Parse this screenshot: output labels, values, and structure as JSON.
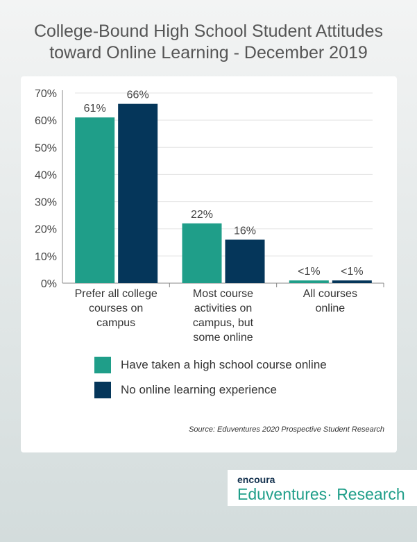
{
  "title_line1": "College-Bound High School Student Attitudes",
  "title_line2": "toward Online Learning - December 2019",
  "chart_data": {
    "type": "bar",
    "categories": [
      [
        "Prefer all college",
        "courses on",
        "campus"
      ],
      [
        "Most course",
        "activities on",
        "campus, but",
        "some online"
      ],
      [
        "All courses",
        "online"
      ]
    ],
    "series": [
      {
        "name": "Have taken a high school course online",
        "values": [
          61,
          22,
          1
        ],
        "labels": [
          "61%",
          "22%",
          "<1%"
        ],
        "color": "#1f9e89"
      },
      {
        "name": "No online learning experience",
        "values": [
          66,
          16,
          1
        ],
        "labels": [
          "66%",
          "16%",
          "<1%"
        ],
        "color": "#05365a"
      }
    ],
    "ylim": [
      0,
      70
    ],
    "yticks": [
      "0%",
      "10%",
      "20%",
      "30%",
      "40%",
      "50%",
      "60%",
      "70%"
    ],
    "grid": true,
    "legend_placement": "bottom"
  },
  "source": "Source: Eduventures 2020 Prospective Student Research",
  "logo": {
    "brand": "encoura",
    "name": "Eduventures· Research"
  }
}
